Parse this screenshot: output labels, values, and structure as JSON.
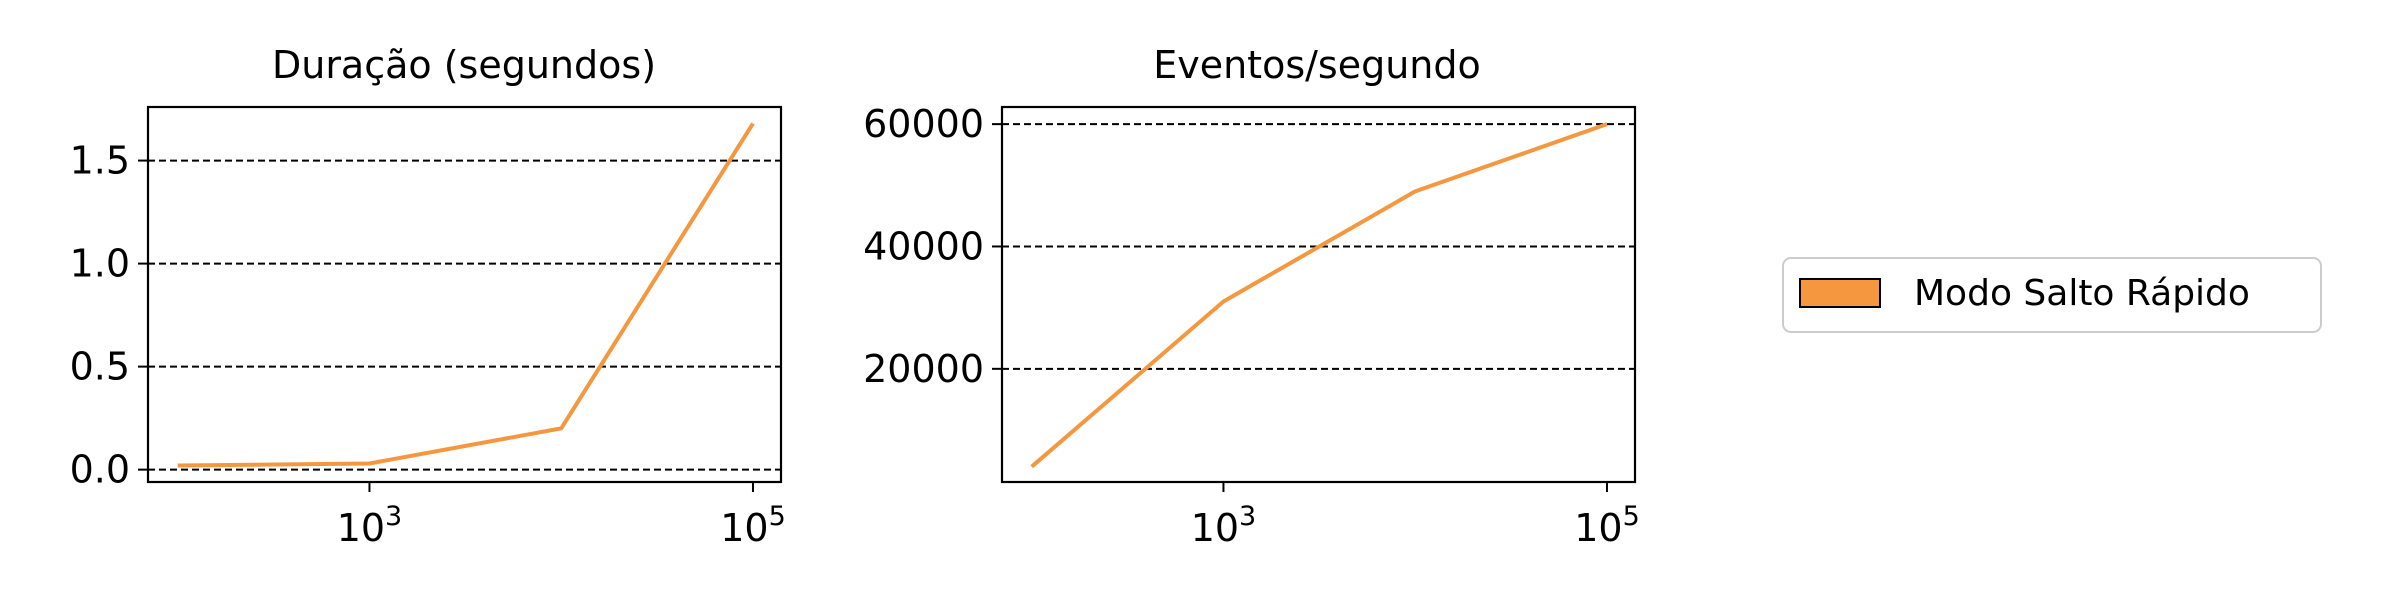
{
  "chart_data": [
    {
      "type": "line",
      "title": "Duração (segundos)",
      "xscale": "log",
      "x_ticks": [
        {
          "base": "10",
          "exp": "3",
          "value": 1000
        },
        {
          "base": "10",
          "exp": "5",
          "value": 100000
        }
      ],
      "y_ticks": [
        "0.0",
        "0.5",
        "1.0",
        "1.5"
      ],
      "ylim": [
        -0.06,
        1.76
      ],
      "xlim": [
        70,
        140000
      ],
      "grid": "horizontal dashed",
      "series": [
        {
          "name": "Modo Salto Rápido",
          "color": "#f5973f",
          "x": [
            100,
            1000,
            10000,
            100000
          ],
          "y": [
            0.02,
            0.03,
            0.2,
            1.68
          ]
        }
      ]
    },
    {
      "type": "line",
      "title": "Eventos/segundo",
      "xscale": "log",
      "x_ticks": [
        {
          "base": "10",
          "exp": "3",
          "value": 1000
        },
        {
          "base": "10",
          "exp": "5",
          "value": 100000
        }
      ],
      "y_ticks": [
        "20000",
        "40000",
        "60000"
      ],
      "ylim": [
        1500,
        62800
      ],
      "xlim": [
        70,
        140000
      ],
      "grid": "horizontal dashed",
      "series": [
        {
          "name": "Modo Salto Rápido",
          "color": "#f5973f",
          "x": [
            100,
            1000,
            10000,
            100000
          ],
          "y": [
            4000,
            31000,
            49000,
            60000
          ]
        }
      ]
    }
  ],
  "legend": {
    "placement": "right",
    "entries": [
      {
        "label": "Modo Salto Rápido",
        "color": "#f5973f"
      }
    ]
  }
}
